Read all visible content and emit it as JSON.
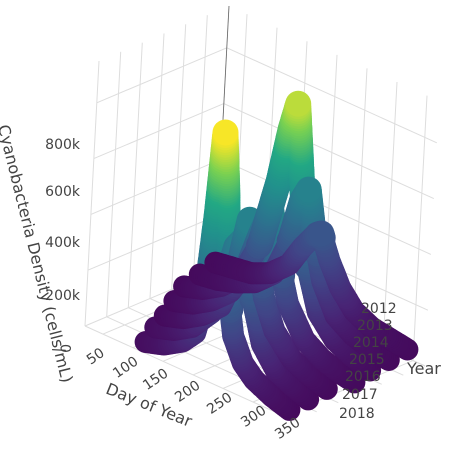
{
  "chart_data": {
    "type": "scatter3d",
    "title": "",
    "xlabel": "Day of Year",
    "ylabel": "Year",
    "zlabel": "Cyanobacteria Density (cells/mL)",
    "x_ticks": [
      "50",
      "100",
      "150",
      "200",
      "250",
      "300",
      "350"
    ],
    "x_tick_values": [
      50,
      100,
      150,
      200,
      250,
      300,
      350
    ],
    "y_ticks": [
      "2012",
      "2013",
      "2014",
      "2015",
      "2016",
      "2017",
      "2018"
    ],
    "y_tick_values": [
      2012,
      2013,
      2014,
      2015,
      2016,
      2017,
      2018
    ],
    "z_ticks": [
      "0",
      "200k",
      "400k",
      "600k",
      "800k"
    ],
    "z_tick_values": [
      0,
      200000,
      400000,
      600000,
      800000
    ],
    "xlim": [
      20,
      370
    ],
    "ylim": [
      2012,
      2018
    ],
    "zlim": [
      0,
      950000
    ],
    "colorscale": "viridis",
    "grid": true,
    "legend": "none",
    "series": [
      {
        "year": 2012,
        "points": [
          [
            120,
            40000
          ],
          [
            150,
            60000
          ],
          [
            180,
            100000
          ],
          [
            200,
            150000
          ],
          [
            215,
            300000
          ],
          [
            225,
            600000
          ],
          [
            232,
            900000
          ],
          [
            240,
            700000
          ],
          [
            250,
            350000
          ],
          [
            262,
            200000
          ],
          [
            280,
            120000
          ],
          [
            300,
            80000
          ],
          [
            330,
            50000
          ],
          [
            360,
            30000
          ]
        ]
      },
      {
        "year": 2013,
        "points": [
          [
            100,
            40000
          ],
          [
            130,
            60000
          ],
          [
            160,
            100000
          ],
          [
            190,
            180000
          ],
          [
            210,
            300000
          ],
          [
            225,
            450000
          ],
          [
            240,
            500000
          ],
          [
            255,
            300000
          ],
          [
            275,
            150000
          ],
          [
            300,
            80000
          ],
          [
            330,
            50000
          ],
          [
            355,
            30000
          ]
        ]
      },
      {
        "year": 2014,
        "points": [
          [
            80,
            30000
          ],
          [
            110,
            50000
          ],
          [
            140,
            90000
          ],
          [
            170,
            150000
          ],
          [
            195,
            300000
          ],
          [
            210,
            500000
          ],
          [
            225,
            400000
          ],
          [
            240,
            250000
          ],
          [
            260,
            150000
          ],
          [
            290,
            80000
          ],
          [
            320,
            50000
          ],
          [
            350,
            30000
          ]
        ]
      },
      {
        "year": 2015,
        "points": [
          [
            60,
            30000
          ],
          [
            90,
            50000
          ],
          [
            120,
            90000
          ],
          [
            150,
            150000
          ],
          [
            175,
            250000
          ],
          [
            195,
            400000
          ],
          [
            210,
            500000
          ],
          [
            225,
            350000
          ],
          [
            245,
            200000
          ],
          [
            275,
            100000
          ],
          [
            305,
            60000
          ],
          [
            335,
            40000
          ],
          [
            360,
            30000
          ]
        ]
      },
      {
        "year": 2016,
        "points": [
          [
            40,
            30000
          ],
          [
            70,
            50000
          ],
          [
            100,
            90000
          ],
          [
            130,
            150000
          ],
          [
            160,
            300000
          ],
          [
            185,
            550000
          ],
          [
            200,
            750000
          ],
          [
            210,
            850000
          ],
          [
            222,
            600000
          ],
          [
            238,
            300000
          ],
          [
            260,
            150000
          ],
          [
            290,
            80000
          ],
          [
            320,
            50000
          ],
          [
            350,
            30000
          ]
        ]
      },
      {
        "year": 2017,
        "points": [
          [
            30,
            30000
          ],
          [
            60,
            40000
          ],
          [
            90,
            60000
          ],
          [
            120,
            90000
          ],
          [
            150,
            150000
          ],
          [
            175,
            300000
          ],
          [
            190,
            450000
          ],
          [
            200,
            500000
          ],
          [
            212,
            350000
          ],
          [
            230,
            200000
          ],
          [
            255,
            100000
          ],
          [
            285,
            60000
          ],
          [
            315,
            40000
          ],
          [
            345,
            30000
          ]
        ]
      },
      {
        "year": 2018,
        "points": [
          [
            20,
            30000
          ],
          [
            50,
            40000
          ],
          [
            80,
            50000
          ],
          [
            110,
            80000
          ],
          [
            140,
            140000
          ],
          [
            160,
            220000
          ],
          [
            178,
            280000
          ],
          [
            190,
            300000
          ],
          [
            205,
            220000
          ],
          [
            225,
            140000
          ],
          [
            250,
            80000
          ],
          [
            280,
            50000
          ],
          [
            310,
            40000
          ],
          [
            340,
            30000
          ]
        ]
      }
    ]
  }
}
